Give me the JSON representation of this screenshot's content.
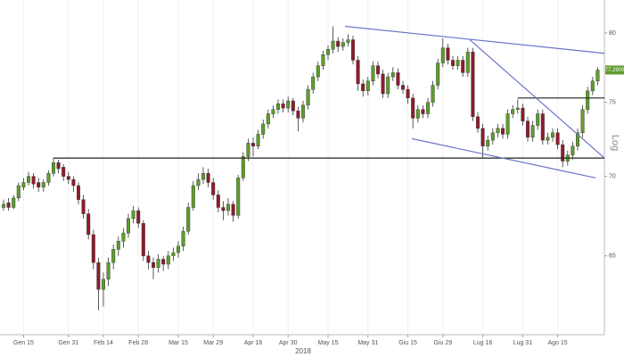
{
  "chart_data": {
    "type": "candlestick",
    "scale": "log",
    "ylim": [
      60.4,
      82.5
    ],
    "yticks": [
      65,
      70,
      75,
      80
    ],
    "ylabel": "Log",
    "xlabel": "2018",
    "up_color": "#5e9c2c",
    "down_color": "#8e1b2e",
    "categories": [
      null,
      null,
      null,
      null,
      "Gen 15",
      null,
      null,
      null,
      null,
      null,
      null,
      null,
      null,
      "Gen 31",
      null,
      null,
      null,
      null,
      null,
      null,
      "Feb 14",
      null,
      null,
      null,
      null,
      null,
      null,
      "Feb 28",
      null,
      null,
      null,
      null,
      null,
      null,
      null,
      "Mar 15",
      null,
      null,
      null,
      null,
      null,
      null,
      "Mar 29",
      null,
      null,
      null,
      null,
      null,
      null,
      null,
      "Apr 16",
      null,
      null,
      null,
      null,
      null,
      null,
      "Apr 30",
      null,
      null,
      null,
      null,
      null,
      null,
      null,
      "May 15",
      null,
      null,
      null,
      null,
      null,
      null,
      null,
      "May 31",
      null,
      null,
      null,
      null,
      null,
      null,
      null,
      "Giu 15",
      null,
      null,
      null,
      null,
      null,
      null,
      "Giu 29",
      null,
      null,
      null,
      null,
      null,
      null,
      null,
      "Lug 16",
      null,
      null,
      null,
      null,
      null,
      null,
      null,
      "Lug 31",
      null,
      null,
      null,
      null,
      null,
      null,
      "Ago 15",
      null,
      null,
      null,
      null,
      null,
      null,
      null,
      null
    ],
    "ohlc": [
      [
        68.0,
        68.5,
        67.8,
        68.2
      ],
      [
        68.3,
        68.6,
        67.8,
        68.0
      ],
      [
        68.0,
        68.8,
        67.9,
        68.6
      ],
      [
        68.6,
        69.6,
        68.4,
        69.4
      ],
      [
        69.3,
        69.9,
        69.1,
        69.6
      ],
      [
        69.6,
        70.3,
        69.4,
        70.0
      ],
      [
        70.0,
        70.2,
        69.2,
        69.5
      ],
      [
        69.6,
        69.9,
        69.0,
        69.3
      ],
      [
        69.3,
        69.8,
        69.0,
        69.6
      ],
      [
        69.6,
        70.4,
        69.4,
        70.2
      ],
      [
        70.2,
        71.2,
        70.0,
        70.9
      ],
      [
        70.9,
        71.1,
        70.2,
        70.5
      ],
      [
        70.6,
        70.8,
        69.7,
        70.0
      ],
      [
        70.0,
        70.3,
        69.5,
        69.8
      ],
      [
        69.8,
        70.0,
        69.0,
        69.4
      ],
      [
        69.4,
        69.6,
        68.2,
        68.5
      ],
      [
        68.5,
        68.8,
        67.3,
        67.6
      ],
      [
        67.6,
        67.9,
        66.0,
        66.3
      ],
      [
        66.3,
        66.6,
        64.2,
        64.6
      ],
      [
        64.6,
        64.9,
        61.8,
        63.0
      ],
      [
        63.0,
        64.0,
        62.0,
        63.6
      ],
      [
        63.6,
        64.9,
        63.2,
        64.6
      ],
      [
        64.6,
        65.7,
        64.2,
        65.4
      ],
      [
        65.4,
        66.2,
        65.0,
        65.9
      ],
      [
        65.9,
        66.7,
        65.5,
        66.4
      ],
      [
        66.4,
        67.6,
        66.1,
        67.3
      ],
      [
        67.3,
        68.1,
        67.0,
        67.8
      ],
      [
        67.8,
        68.0,
        66.7,
        67.0
      ],
      [
        67.0,
        67.2,
        64.7,
        65.0
      ],
      [
        65.0,
        65.3,
        64.2,
        64.6
      ],
      [
        64.6,
        64.9,
        63.6,
        64.3
      ],
      [
        64.3,
        65.1,
        64.0,
        64.8
      ],
      [
        64.8,
        65.0,
        64.1,
        64.5
      ],
      [
        64.5,
        65.3,
        64.2,
        65.0
      ],
      [
        65.0,
        65.5,
        64.7,
        65.2
      ],
      [
        65.2,
        65.9,
        64.9,
        65.6
      ],
      [
        65.6,
        66.8,
        65.3,
        66.5
      ],
      [
        66.5,
        68.3,
        66.3,
        68.0
      ],
      [
        68.0,
        69.7,
        67.8,
        69.4
      ],
      [
        69.4,
        70.2,
        69.1,
        69.8
      ],
      [
        69.8,
        70.6,
        69.5,
        70.2
      ],
      [
        70.2,
        70.5,
        69.3,
        69.6
      ],
      [
        69.6,
        69.9,
        68.5,
        68.8
      ],
      [
        68.8,
        69.1,
        67.7,
        68.0
      ],
      [
        68.0,
        68.4,
        67.2,
        67.8
      ],
      [
        67.8,
        68.6,
        67.5,
        68.2
      ],
      [
        68.2,
        68.4,
        67.1,
        67.5
      ],
      [
        67.5,
        70.1,
        67.3,
        69.9
      ],
      [
        69.9,
        71.6,
        69.7,
        71.3
      ],
      [
        71.3,
        72.5,
        71.0,
        72.2
      ],
      [
        72.2,
        72.6,
        71.3,
        72.0
      ],
      [
        72.0,
        73.1,
        71.8,
        72.8
      ],
      [
        72.8,
        73.8,
        72.5,
        73.5
      ],
      [
        73.5,
        74.5,
        73.2,
        74.2
      ],
      [
        74.2,
        74.8,
        73.9,
        74.5
      ],
      [
        74.5,
        75.2,
        74.2,
        74.9
      ],
      [
        74.9,
        75.2,
        74.3,
        74.6
      ],
      [
        74.6,
        75.4,
        74.3,
        75.1
      ],
      [
        75.1,
        75.3,
        74.1,
        74.4
      ],
      [
        74.4,
        74.7,
        73.0,
        73.9
      ],
      [
        73.9,
        75.1,
        73.6,
        74.8
      ],
      [
        74.8,
        76.2,
        74.5,
        75.9
      ],
      [
        75.9,
        77.1,
        75.6,
        76.8
      ],
      [
        76.8,
        77.9,
        76.5,
        77.6
      ],
      [
        77.6,
        78.7,
        77.3,
        78.4
      ],
      [
        78.4,
        79.1,
        78.0,
        78.8
      ],
      [
        78.8,
        80.5,
        78.5,
        79.4
      ],
      [
        79.4,
        79.7,
        78.6,
        79.0
      ],
      [
        79.0,
        79.6,
        78.7,
        79.3
      ],
      [
        79.3,
        79.9,
        79.0,
        79.5
      ],
      [
        79.5,
        79.8,
        77.7,
        78.0
      ],
      [
        78.0,
        78.3,
        75.8,
        76.3
      ],
      [
        76.3,
        76.6,
        75.4,
        75.8
      ],
      [
        75.8,
        76.8,
        75.5,
        76.5
      ],
      [
        76.5,
        77.9,
        76.2,
        77.6
      ],
      [
        77.6,
        77.9,
        76.7,
        77.0
      ],
      [
        77.0,
        77.3,
        75.3,
        75.6
      ],
      [
        75.6,
        77.1,
        75.3,
        76.8
      ],
      [
        76.8,
        77.5,
        76.5,
        77.1
      ],
      [
        77.1,
        77.4,
        75.9,
        76.2
      ],
      [
        76.2,
        76.5,
        75.6,
        75.9
      ],
      [
        75.9,
        76.2,
        74.9,
        75.3
      ],
      [
        75.3,
        75.6,
        73.2,
        73.9
      ],
      [
        73.9,
        74.8,
        73.6,
        74.5
      ],
      [
        74.5,
        74.8,
        73.9,
        74.2
      ],
      [
        74.2,
        75.3,
        73.9,
        75.0
      ],
      [
        75.0,
        76.5,
        74.7,
        76.2
      ],
      [
        76.2,
        78.1,
        75.9,
        77.8
      ],
      [
        77.8,
        79.6,
        77.5,
        78.9
      ],
      [
        78.9,
        79.2,
        77.7,
        78.0
      ],
      [
        78.0,
        78.3,
        77.3,
        77.6
      ],
      [
        77.6,
        78.3,
        77.3,
        78.0
      ],
      [
        78.0,
        78.3,
        76.8,
        77.1
      ],
      [
        77.1,
        78.9,
        76.8,
        78.6
      ],
      [
        78.6,
        78.9,
        73.7,
        74.0
      ],
      [
        74.0,
        74.3,
        72.9,
        73.2
      ],
      [
        73.2,
        73.5,
        71.2,
        72.0
      ],
      [
        72.0,
        72.7,
        71.7,
        72.4
      ],
      [
        72.4,
        73.2,
        72.1,
        72.9
      ],
      [
        72.9,
        73.5,
        72.6,
        73.2
      ],
      [
        73.2,
        73.5,
        72.5,
        72.8
      ],
      [
        72.8,
        74.5,
        72.5,
        74.2
      ],
      [
        74.2,
        74.8,
        73.9,
        74.5
      ],
      [
        74.5,
        75.2,
        74.2,
        74.6
      ],
      [
        74.6,
        74.9,
        73.4,
        73.7
      ],
      [
        73.7,
        74.0,
        72.3,
        72.6
      ],
      [
        72.6,
        73.7,
        72.3,
        73.4
      ],
      [
        73.4,
        74.5,
        73.1,
        74.2
      ],
      [
        74.2,
        74.5,
        72.1,
        72.4
      ],
      [
        72.4,
        72.9,
        72.1,
        72.6
      ],
      [
        72.6,
        73.2,
        72.3,
        72.9
      ],
      [
        72.9,
        73.2,
        71.8,
        72.1
      ],
      [
        72.1,
        72.4,
        70.6,
        71.0
      ],
      [
        71.0,
        71.7,
        70.7,
        71.4
      ],
      [
        71.4,
        72.3,
        71.1,
        72.0
      ],
      [
        72.0,
        73.2,
        71.7,
        72.9
      ],
      [
        72.9,
        74.8,
        72.6,
        74.5
      ],
      [
        74.5,
        76.1,
        74.2,
        75.8
      ],
      [
        75.8,
        76.8,
        75.5,
        76.5
      ],
      [
        76.5,
        77.5,
        76.2,
        77.29
      ]
    ],
    "trendlines": [
      {
        "x": [
          10,
          120.4
        ],
        "y": [
          71.2,
          71.2
        ],
        "color": "#222222"
      },
      {
        "x": [
          103,
          120.4
        ],
        "y": [
          75.3,
          75.3
        ],
        "color": "#222222"
      },
      {
        "x": [
          68.4,
          120.4
        ],
        "y": [
          80.5,
          78.5
        ],
        "color": "#6b73c8"
      },
      {
        "x": [
          81.8,
          118.6
        ],
        "y": [
          72.5,
          69.9
        ],
        "color": "#6b73c8"
      },
      {
        "x": [
          93.4,
          120.4
        ],
        "y": [
          79.5,
          71.2
        ],
        "color": "#6b73c8"
      }
    ],
    "price_tag": {
      "value": 77.29,
      "label": "77.2900",
      "color": "#5e9c2c"
    }
  }
}
